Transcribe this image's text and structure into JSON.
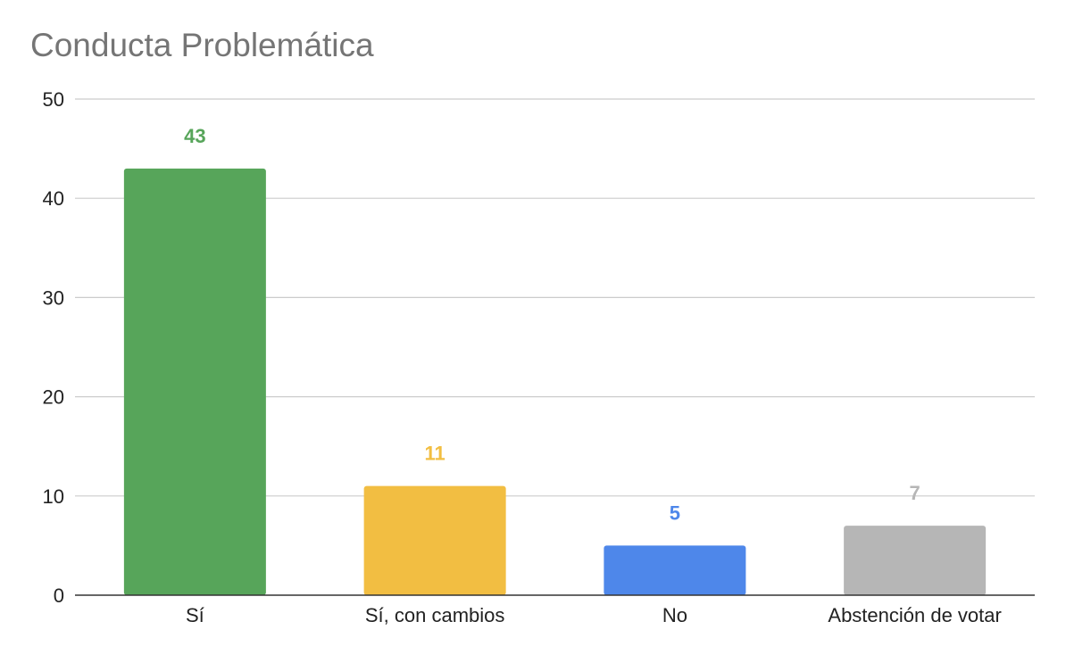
{
  "chart_data": {
    "type": "bar",
    "title": "Conducta Problemática",
    "categories": [
      "Sí",
      "Sí, con cambios",
      "No",
      "Abstención de votar"
    ],
    "values": [
      43,
      11,
      5,
      7
    ],
    "colors": [
      "#57a55a",
      "#f2be42",
      "#4e87ea",
      "#b6b6b6"
    ],
    "ylim": [
      0,
      50
    ],
    "yticks": [
      0,
      10,
      20,
      30,
      40,
      50
    ],
    "xlabel": "",
    "ylabel": "",
    "grid": true,
    "legend": "none",
    "data_labels": true
  }
}
